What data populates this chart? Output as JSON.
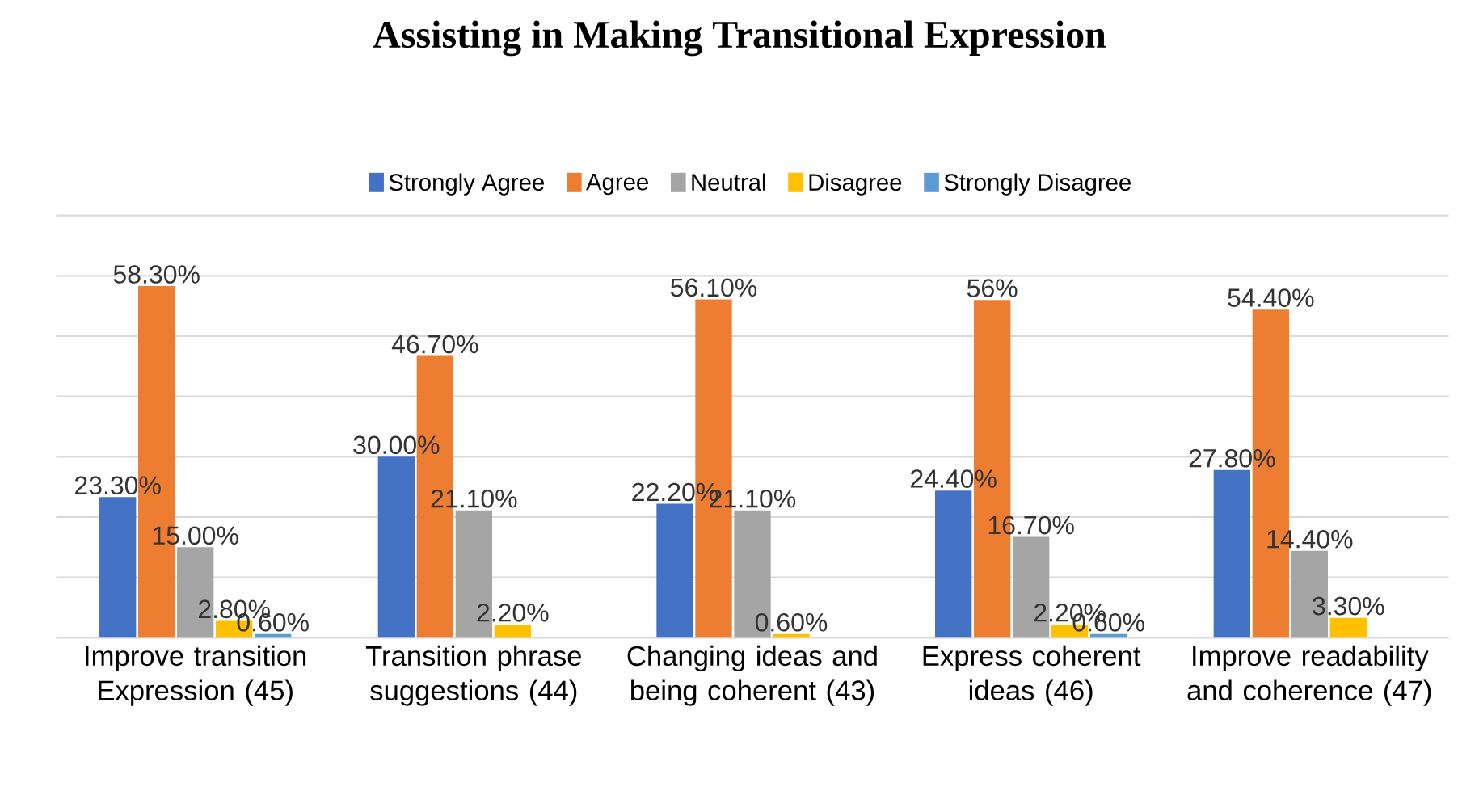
{
  "chart_data": {
    "type": "bar",
    "title": "Assisting in Making Transitional Expression",
    "categories": [
      "Improve transition Expression (45)",
      "Transition phrase suggestions (44)",
      "Changing ideas and being coherent (43)",
      "Express coherent ideas (46)",
      "Improve readability and coherence (47)"
    ],
    "series": [
      {
        "name": "Strongly Agree",
        "color": "#4472c4",
        "values": [
          23.3,
          30.0,
          22.2,
          24.4,
          27.8
        ],
        "value_labels": [
          "23.30%",
          "30.00%",
          "22.20%",
          "24.40%",
          "27.80%"
        ]
      },
      {
        "name": "Agree",
        "color": "#ed7d31",
        "values": [
          58.3,
          46.7,
          56.1,
          56,
          54.4
        ],
        "value_labels": [
          "58.30%",
          "46.70%",
          "56.10%",
          "56%",
          "54.40%"
        ]
      },
      {
        "name": "Neutral",
        "color": "#a5a5a5",
        "values": [
          15.0,
          21.1,
          21.1,
          16.7,
          14.4
        ],
        "value_labels": [
          "15.00%",
          "21.10%",
          "21.10%",
          "16.70%",
          "14.40%"
        ]
      },
      {
        "name": "Disagree",
        "color": "#ffc000",
        "values": [
          2.8,
          2.2,
          0.6,
          2.2,
          3.3
        ],
        "value_labels": [
          "2.80%",
          "2.20%",
          "0.60%",
          "2.20%",
          "3.30%"
        ]
      },
      {
        "name": "Strongly Disagree",
        "color": "#5b9bd5",
        "values": [
          0.6,
          null,
          null,
          0.6,
          null
        ],
        "value_labels": [
          "0.60%",
          null,
          null,
          "0.60%",
          null
        ]
      }
    ],
    "ylim": [
      0,
      70
    ],
    "yticks": [
      {
        "value": 0,
        "label": null
      },
      {
        "value": 10,
        "label": null
      },
      {
        "value": 20,
        "label": null
      },
      {
        "value": 30,
        "label": null
      },
      {
        "value": 40,
        "label": null
      },
      {
        "value": 50,
        "label": null
      },
      {
        "value": 60,
        "label": null
      },
      {
        "value": 70,
        "label": null
      }
    ],
    "tick_labels": "x",
    "grid": "y",
    "legend": "top"
  }
}
